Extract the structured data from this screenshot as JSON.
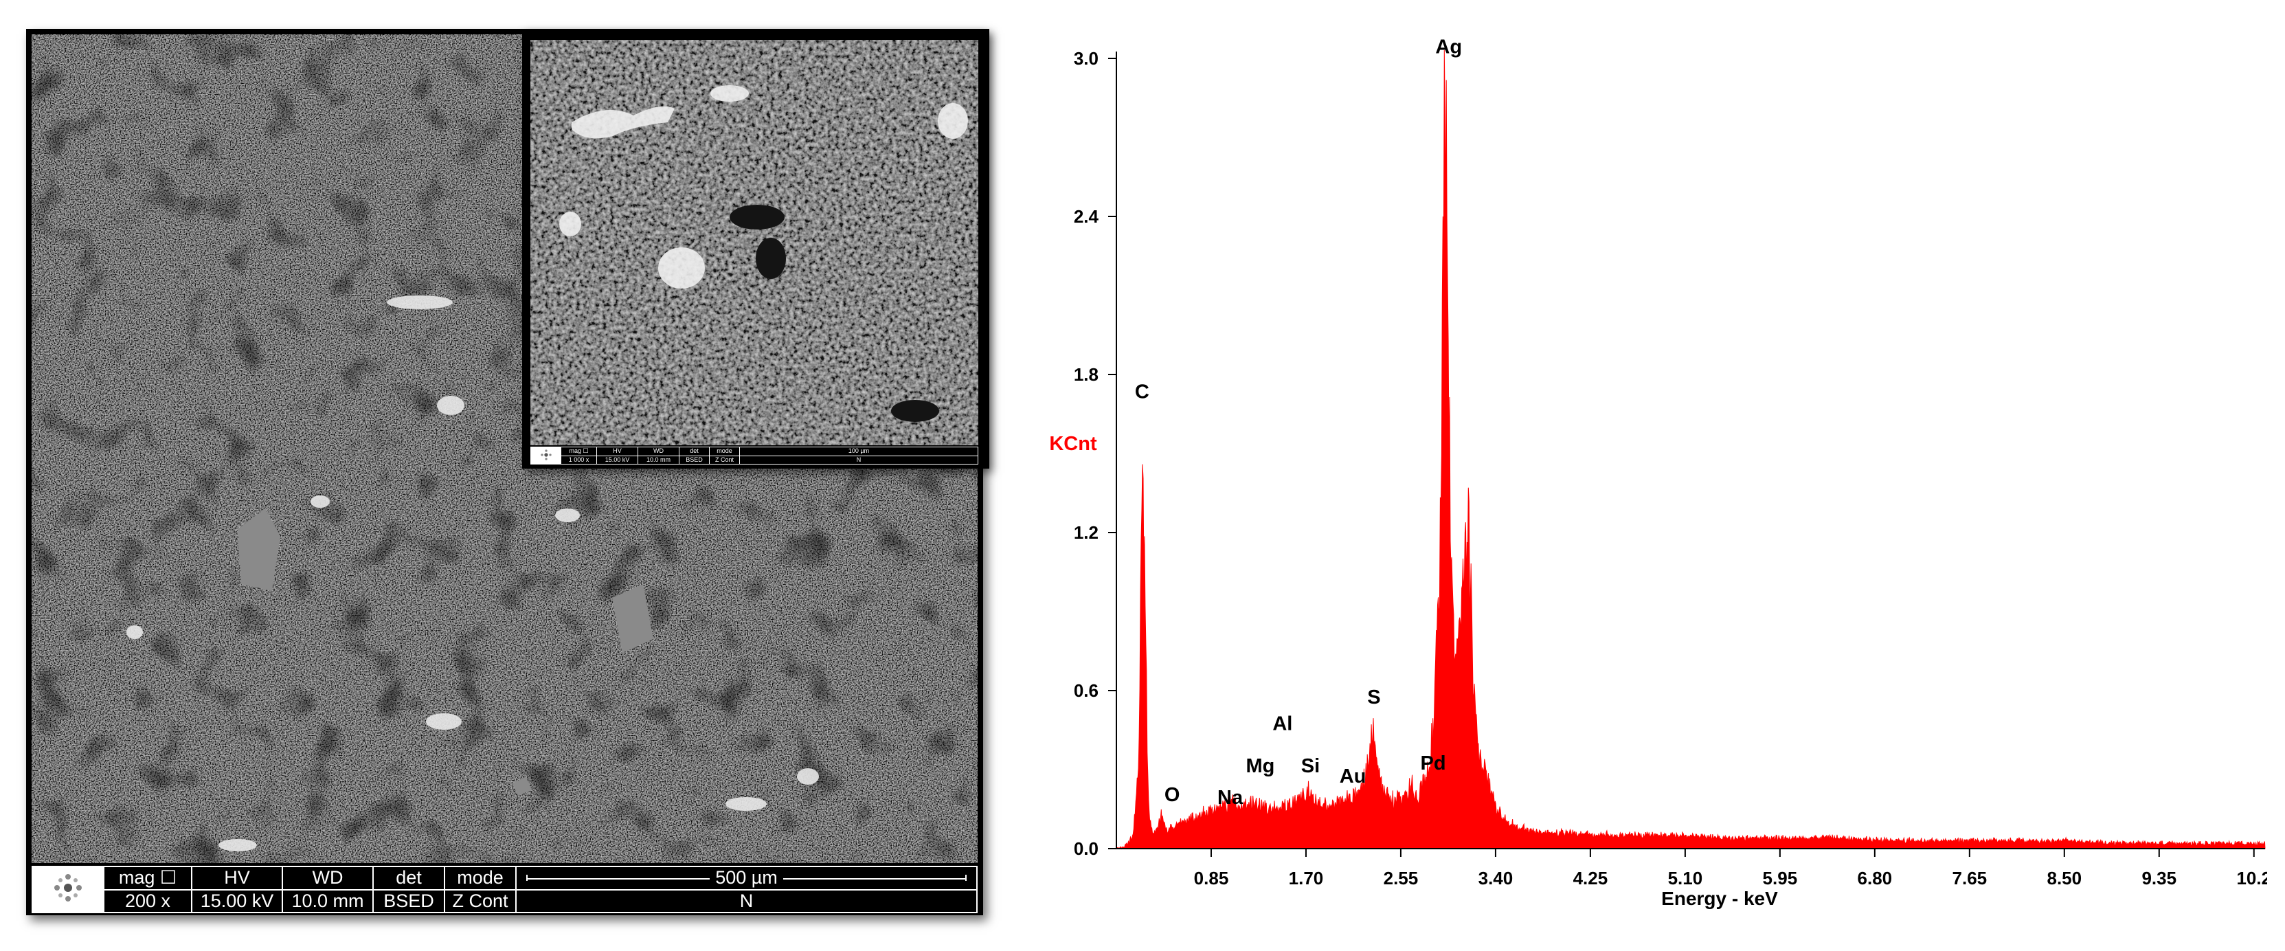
{
  "sem": {
    "databar": {
      "mag_label": "mag ☐",
      "mag_value": "200 x",
      "hv_label": "HV",
      "hv_value": "15.00 kV",
      "wd_label": "WD",
      "wd_value": "10.0 mm",
      "det_label": "det",
      "det_value": "BSED",
      "mode_label": "mode",
      "mode_value": "Z Cont",
      "scale_label": "500 µm",
      "orientation": "N"
    },
    "inset_databar": {
      "mag_label": "mag ☐",
      "mag_value": "1 000 x",
      "hv_label": "HV",
      "hv_value": "15.00 kV",
      "wd_label": "WD",
      "wd_value": "10.0 mm",
      "det_label": "det",
      "det_value": "BSED",
      "mode_label": "mode",
      "mode_value": "Z Cont",
      "scale_label": "100 µm",
      "orientation": "N"
    }
  },
  "chart_data": {
    "type": "area",
    "xlabel": "Energy - keV",
    "ylabel": "KCnt",
    "xlim": [
      0,
      10.3
    ],
    "ylim": [
      0,
      3.0
    ],
    "x_ticks": [
      "0.85",
      "1.70",
      "2.55",
      "3.40",
      "4.25",
      "5.10",
      "5.95",
      "6.80",
      "7.65",
      "8.50",
      "9.35",
      "10.2"
    ],
    "y_ticks": [
      "0.0",
      "0.6",
      "1.2",
      "1.8",
      "2.4",
      "3.0"
    ],
    "series_color": "#ff0000",
    "ylabel_color": "#ff0000",
    "grid": false,
    "x": [
      0.0,
      0.05,
      0.1,
      0.15,
      0.2,
      0.23,
      0.26,
      0.28,
      0.3,
      0.33,
      0.36,
      0.4,
      0.45,
      0.5,
      0.53,
      0.56,
      0.6,
      0.7,
      0.8,
      0.9,
      1.0,
      1.04,
      1.1,
      1.2,
      1.25,
      1.3,
      1.4,
      1.5,
      1.6,
      1.74,
      1.8,
      1.9,
      2.0,
      2.1,
      2.2,
      2.25,
      2.3,
      2.35,
      2.4,
      2.5,
      2.6,
      2.65,
      2.7,
      2.8,
      2.85,
      2.9,
      2.95,
      2.98,
      3.0,
      3.05,
      3.1,
      3.15,
      3.18,
      3.2,
      3.25,
      3.3,
      3.4,
      3.5,
      3.6,
      3.8,
      4.0,
      4.5,
      5.0,
      5.5,
      6.0,
      6.5,
      7.0,
      7.5,
      8.0,
      8.5,
      9.0,
      9.5,
      10.0,
      10.3
    ],
    "y": [
      0.0,
      0.0,
      0.02,
      0.05,
      0.3,
      1.61,
      0.9,
      0.3,
      0.1,
      0.05,
      0.07,
      0.13,
      0.07,
      0.08,
      0.09,
      0.1,
      0.1,
      0.12,
      0.14,
      0.15,
      0.16,
      0.19,
      0.15,
      0.17,
      0.18,
      0.16,
      0.15,
      0.16,
      0.17,
      0.22,
      0.18,
      0.16,
      0.17,
      0.2,
      0.22,
      0.3,
      0.44,
      0.28,
      0.2,
      0.18,
      0.2,
      0.24,
      0.2,
      0.3,
      0.5,
      1.1,
      2.97,
      1.8,
      1.0,
      0.7,
      0.9,
      1.27,
      1.0,
      0.6,
      0.35,
      0.3,
      0.16,
      0.1,
      0.08,
      0.06,
      0.06,
      0.05,
      0.05,
      0.04,
      0.04,
      0.04,
      0.03,
      0.03,
      0.03,
      0.03,
      0.02,
      0.02,
      0.02,
      0.02
    ],
    "annotations": [
      {
        "label": "C",
        "x": 0.23,
        "y": 1.71
      },
      {
        "label": "O",
        "x": 0.5,
        "y": 0.18
      },
      {
        "label": "Na",
        "x": 1.02,
        "y": 0.17
      },
      {
        "label": "Mg",
        "x": 1.29,
        "y": 0.29
      },
      {
        "label": "Al",
        "x": 1.49,
        "y": 0.45
      },
      {
        "label": "Si",
        "x": 1.74,
        "y": 0.29
      },
      {
        "label": "Au",
        "x": 2.12,
        "y": 0.25
      },
      {
        "label": "S",
        "x": 2.31,
        "y": 0.55
      },
      {
        "label": "Pd",
        "x": 2.84,
        "y": 0.3
      },
      {
        "label": "Ag",
        "x": 2.98,
        "y": 3.02
      }
    ]
  }
}
